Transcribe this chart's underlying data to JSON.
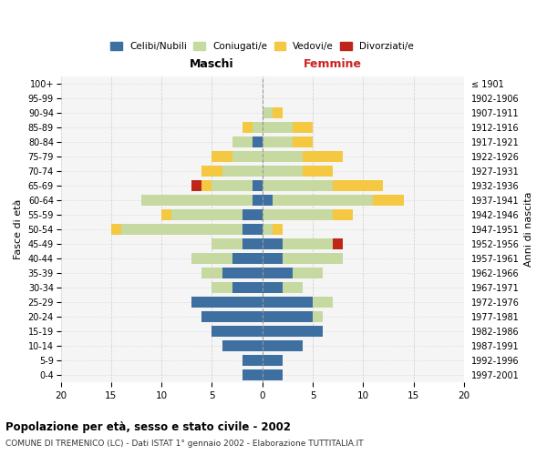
{
  "age_groups": [
    "0-4",
    "5-9",
    "10-14",
    "15-19",
    "20-24",
    "25-29",
    "30-34",
    "35-39",
    "40-44",
    "45-49",
    "50-54",
    "55-59",
    "60-64",
    "65-69",
    "70-74",
    "75-79",
    "80-84",
    "85-89",
    "90-94",
    "95-99",
    "100+"
  ],
  "birth_years": [
    "1997-2001",
    "1992-1996",
    "1987-1991",
    "1982-1986",
    "1977-1981",
    "1972-1976",
    "1967-1971",
    "1962-1966",
    "1957-1961",
    "1952-1956",
    "1947-1951",
    "1942-1946",
    "1937-1941",
    "1932-1936",
    "1927-1931",
    "1922-1926",
    "1917-1921",
    "1912-1916",
    "1907-1911",
    "1902-1906",
    "≤ 1901"
  ],
  "males": {
    "celibi": [
      2,
      2,
      4,
      5,
      6,
      7,
      3,
      4,
      3,
      2,
      2,
      2,
      1,
      1,
      0,
      0,
      1,
      0,
      0,
      0,
      0
    ],
    "coniugati": [
      0,
      0,
      0,
      0,
      0,
      0,
      2,
      2,
      4,
      3,
      12,
      7,
      11,
      4,
      4,
      3,
      2,
      1,
      0,
      0,
      0
    ],
    "vedovi": [
      0,
      0,
      0,
      0,
      0,
      0,
      0,
      0,
      0,
      0,
      1,
      1,
      0,
      1,
      2,
      2,
      0,
      1,
      0,
      0,
      0
    ],
    "divorziati": [
      0,
      0,
      0,
      0,
      0,
      0,
      0,
      0,
      0,
      0,
      0,
      0,
      0,
      1,
      0,
      0,
      0,
      0,
      0,
      0,
      0
    ]
  },
  "females": {
    "nubili": [
      2,
      2,
      4,
      6,
      5,
      5,
      2,
      3,
      2,
      2,
      0,
      0,
      1,
      0,
      0,
      0,
      0,
      0,
      0,
      0,
      0
    ],
    "coniugate": [
      0,
      0,
      0,
      0,
      1,
      2,
      2,
      3,
      6,
      5,
      1,
      7,
      10,
      7,
      4,
      4,
      3,
      3,
      1,
      0,
      0
    ],
    "vedove": [
      0,
      0,
      0,
      0,
      0,
      0,
      0,
      0,
      0,
      0,
      1,
      2,
      3,
      5,
      3,
      4,
      2,
      2,
      1,
      0,
      0
    ],
    "divorziate": [
      0,
      0,
      0,
      0,
      0,
      0,
      0,
      0,
      0,
      1,
      0,
      0,
      0,
      0,
      0,
      0,
      0,
      0,
      0,
      0,
      0
    ]
  },
  "colors": {
    "celibi_nubili": "#3d6fa0",
    "coniugati": "#c5d9a0",
    "vedovi": "#f5c842",
    "divorziati": "#c0251a"
  },
  "xlim": 20,
  "title": "Popolazione per età, sesso e stato civile - 2002",
  "subtitle": "COMUNE DI TREMENICO (LC) - Dati ISTAT 1° gennaio 2002 - Elaborazione TUTTITALIA.IT",
  "ylabel": "Fasce di età",
  "ylabel_right": "Anni di nascita",
  "xlabel_left": "Maschi",
  "xlabel_right": "Femmine",
  "background_color": "#f5f5f5",
  "grid_color": "#cccccc"
}
